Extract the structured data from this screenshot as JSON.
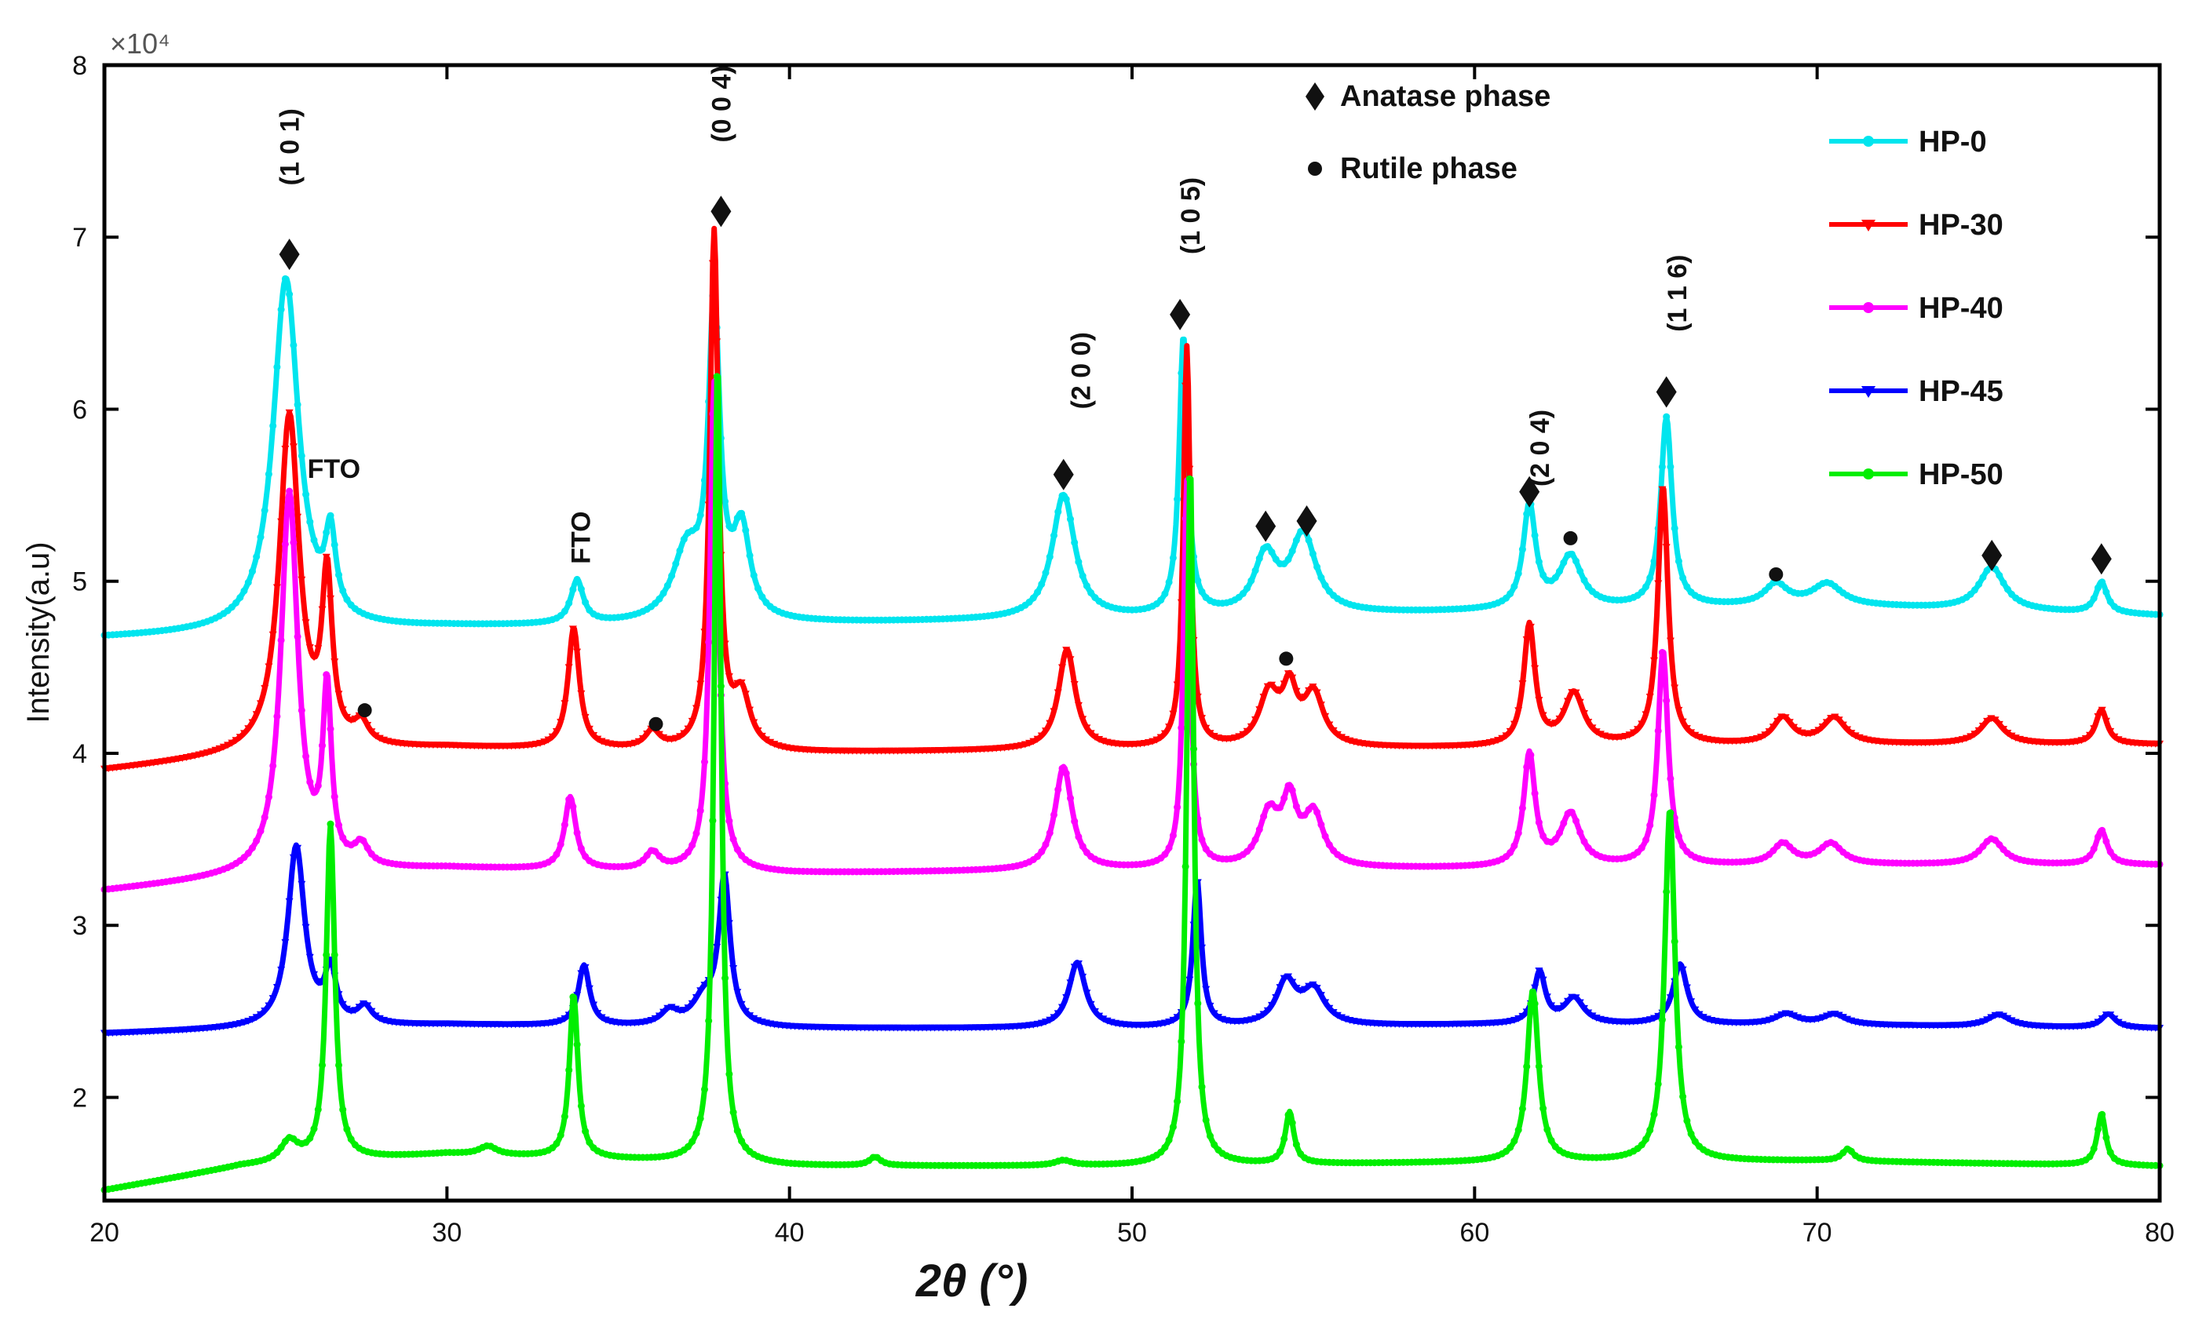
{
  "chart_data": {
    "type": "line",
    "title": "",
    "xlabel": "2θ (°)",
    "ylabel": "Intensity(a.u)",
    "y_exponent_label": "×10⁴",
    "xlim": [
      20,
      80
    ],
    "ylim": [
      1.4,
      8
    ],
    "y_scale": 10000,
    "x_ticks": [
      20,
      30,
      40,
      50,
      60,
      70,
      80
    ],
    "y_ticks": [
      2,
      3,
      4,
      5,
      6,
      7,
      8
    ],
    "legend_position": "top-right",
    "phase_legend": [
      {
        "marker": "diamond",
        "label": "Anatase phase"
      },
      {
        "marker": "dot",
        "label": "Rutile phase"
      }
    ],
    "series": [
      {
        "name": "HP-0",
        "color": "#00e5ee",
        "marker": "dot",
        "baseline": [
          [
            20,
            4.67
          ],
          [
            30,
            4.73
          ],
          [
            40,
            4.75
          ],
          [
            50,
            4.78
          ],
          [
            60,
            4.82
          ],
          [
            70,
            4.86
          ],
          [
            80,
            4.8
          ]
        ],
        "peaks": [
          [
            25.3,
            2.05,
            0.45
          ],
          [
            26.6,
            0.45,
            0.18
          ],
          [
            33.8,
            0.25,
            0.22
          ],
          [
            37.0,
            0.4,
            0.5
          ],
          [
            37.8,
            1.8,
            0.2
          ],
          [
            38.6,
            0.5,
            0.3
          ],
          [
            48.0,
            0.72,
            0.4
          ],
          [
            51.5,
            1.62,
            0.15
          ],
          [
            53.9,
            0.33,
            0.4
          ],
          [
            55.0,
            0.45,
            0.45
          ],
          [
            61.6,
            0.6,
            0.22
          ],
          [
            62.8,
            0.3,
            0.4
          ],
          [
            65.6,
            1.1,
            0.2
          ],
          [
            68.8,
            0.12,
            0.4
          ],
          [
            70.3,
            0.12,
            0.5
          ],
          [
            75.1,
            0.25,
            0.45
          ],
          [
            78.3,
            0.18,
            0.2
          ]
        ]
      },
      {
        "name": "HP-30",
        "color": "#ff0000",
        "marker": "triangle",
        "baseline": [
          [
            20,
            3.9
          ],
          [
            25,
            4.0
          ],
          [
            30,
            4.03
          ],
          [
            40,
            4.0
          ],
          [
            50,
            4.02
          ],
          [
            60,
            4.03
          ],
          [
            70,
            4.05
          ],
          [
            80,
            4.05
          ]
        ],
        "peaks": [
          [
            25.4,
            1.95,
            0.35
          ],
          [
            26.5,
            0.95,
            0.18
          ],
          [
            27.5,
            0.12,
            0.25
          ],
          [
            33.7,
            0.7,
            0.2
          ],
          [
            36.0,
            0.1,
            0.25
          ],
          [
            37.8,
            3.0,
            0.15
          ],
          [
            38.6,
            0.3,
            0.3
          ],
          [
            48.1,
            0.58,
            0.3
          ],
          [
            51.6,
            2.33,
            0.12
          ],
          [
            54.0,
            0.3,
            0.35
          ],
          [
            54.6,
            0.3,
            0.25
          ],
          [
            55.3,
            0.3,
            0.35
          ],
          [
            61.6,
            0.7,
            0.2
          ],
          [
            62.9,
            0.3,
            0.35
          ],
          [
            65.5,
            1.5,
            0.18
          ],
          [
            69.0,
            0.15,
            0.35
          ],
          [
            70.5,
            0.15,
            0.4
          ],
          [
            75.1,
            0.15,
            0.4
          ],
          [
            78.3,
            0.2,
            0.2
          ]
        ]
      },
      {
        "name": "HP-40",
        "color": "#ff00ff",
        "marker": "dot",
        "baseline": [
          [
            20,
            3.2
          ],
          [
            25,
            3.3
          ],
          [
            30,
            3.33
          ],
          [
            40,
            3.3
          ],
          [
            50,
            3.32
          ],
          [
            60,
            3.33
          ],
          [
            70,
            3.35
          ],
          [
            80,
            3.35
          ]
        ],
        "peaks": [
          [
            25.4,
            2.2,
            0.3
          ],
          [
            26.5,
            1.0,
            0.15
          ],
          [
            27.5,
            0.12,
            0.25
          ],
          [
            33.6,
            0.42,
            0.2
          ],
          [
            36.0,
            0.1,
            0.25
          ],
          [
            37.8,
            2.85,
            0.15
          ],
          [
            48.0,
            0.6,
            0.3
          ],
          [
            51.6,
            2.25,
            0.12
          ],
          [
            54.0,
            0.3,
            0.35
          ],
          [
            54.6,
            0.35,
            0.25
          ],
          [
            55.3,
            0.3,
            0.35
          ],
          [
            61.6,
            0.65,
            0.2
          ],
          [
            62.8,
            0.3,
            0.35
          ],
          [
            65.5,
            1.25,
            0.18
          ],
          [
            69.0,
            0.12,
            0.35
          ],
          [
            70.4,
            0.12,
            0.4
          ],
          [
            75.1,
            0.15,
            0.4
          ],
          [
            78.3,
            0.2,
            0.2
          ]
        ]
      },
      {
        "name": "HP-45",
        "color": "#0000ff",
        "marker": "triangle",
        "baseline": [
          [
            20,
            2.37
          ],
          [
            25,
            2.4
          ],
          [
            30,
            2.42
          ],
          [
            40,
            2.4
          ],
          [
            50,
            2.4
          ],
          [
            60,
            2.42
          ],
          [
            70,
            2.42
          ],
          [
            80,
            2.4
          ]
        ],
        "peaks": [
          [
            25.6,
            1.05,
            0.3
          ],
          [
            26.6,
            0.3,
            0.2
          ],
          [
            27.6,
            0.1,
            0.25
          ],
          [
            34.0,
            0.35,
            0.2
          ],
          [
            36.5,
            0.08,
            0.3
          ],
          [
            37.5,
            0.15,
            0.4
          ],
          [
            38.1,
            0.85,
            0.2
          ],
          [
            48.4,
            0.38,
            0.3
          ],
          [
            51.9,
            0.85,
            0.15
          ],
          [
            54.5,
            0.25,
            0.35
          ],
          [
            55.3,
            0.2,
            0.4
          ],
          [
            61.9,
            0.3,
            0.2
          ],
          [
            62.9,
            0.15,
            0.35
          ],
          [
            66.0,
            0.35,
            0.25
          ],
          [
            69.1,
            0.06,
            0.4
          ],
          [
            70.5,
            0.06,
            0.4
          ],
          [
            75.3,
            0.07,
            0.4
          ],
          [
            78.5,
            0.08,
            0.25
          ]
        ]
      },
      {
        "name": "HP-50",
        "color": "#00ee00",
        "marker": "dot",
        "baseline": [
          [
            20,
            1.46
          ],
          [
            24,
            1.6
          ],
          [
            30,
            1.67
          ],
          [
            40,
            1.6
          ],
          [
            50,
            1.6
          ],
          [
            60,
            1.62
          ],
          [
            70,
            1.63
          ],
          [
            80,
            1.6
          ]
        ],
        "peaks": [
          [
            25.4,
            0.12,
            0.3
          ],
          [
            26.6,
            1.95,
            0.15
          ],
          [
            31.2,
            0.05,
            0.3
          ],
          [
            33.7,
            0.95,
            0.15
          ],
          [
            37.9,
            4.7,
            0.12
          ],
          [
            42.5,
            0.05,
            0.2
          ],
          [
            48.0,
            0.03,
            0.3
          ],
          [
            51.7,
            4.1,
            0.12
          ],
          [
            54.6,
            0.3,
            0.15
          ],
          [
            61.7,
            1.0,
            0.2
          ],
          [
            65.7,
            2.05,
            0.18
          ],
          [
            70.9,
            0.07,
            0.2
          ],
          [
            78.3,
            0.3,
            0.15
          ]
        ]
      }
    ],
    "annotations": [
      {
        "text": "(1 0 1)",
        "x": 25.4,
        "y": 7.3,
        "marker": "diamond",
        "mx": 25.4,
        "my": 6.9,
        "rotate": true
      },
      {
        "text": "(0 0 4)",
        "x": 38.0,
        "y": 7.55,
        "marker": "diamond",
        "mx": 38.0,
        "my": 7.15,
        "rotate": true
      },
      {
        "text": "(2 0 0)",
        "x": 48.5,
        "y": 6.0,
        "marker": "diamond",
        "mx": 48.0,
        "my": 5.62,
        "rotate": true
      },
      {
        "text": "(1 0 5)",
        "x": 51.7,
        "y": 6.9,
        "marker": "diamond",
        "mx": 51.4,
        "my": 6.55,
        "rotate": true
      },
      {
        "text": "(2 0 4)",
        "x": 61.9,
        "y": 5.55,
        "marker": "diamond",
        "mx": 61.6,
        "my": 5.52,
        "rotate": true
      },
      {
        "text": "(1 1 6)",
        "x": 65.9,
        "y": 6.45,
        "marker": "diamond",
        "mx": 65.6,
        "my": 6.1,
        "rotate": true
      },
      {
        "text": "FTO",
        "x": 26.7,
        "y": 5.6,
        "rotate": false
      },
      {
        "text": "FTO",
        "x": 33.9,
        "y": 5.1,
        "rotate": true
      },
      {
        "text": "",
        "marker": "diamond",
        "mx": 53.9,
        "my": 5.32
      },
      {
        "text": "",
        "marker": "diamond",
        "mx": 55.1,
        "my": 5.35
      },
      {
        "text": "",
        "marker": "diamond",
        "mx": 75.1,
        "my": 5.15
      },
      {
        "text": "",
        "marker": "diamond",
        "mx": 78.3,
        "my": 5.13
      },
      {
        "text": "",
        "marker": "dot",
        "mx": 62.8,
        "my": 5.25
      },
      {
        "text": "",
        "marker": "dot",
        "mx": 68.8,
        "my": 5.04
      },
      {
        "text": "",
        "marker": "dot",
        "mx": 54.5,
        "my": 4.55
      },
      {
        "text": "",
        "marker": "dot",
        "mx": 27.6,
        "my": 4.25
      },
      {
        "text": "",
        "marker": "dot",
        "mx": 36.1,
        "my": 4.17
      }
    ]
  }
}
